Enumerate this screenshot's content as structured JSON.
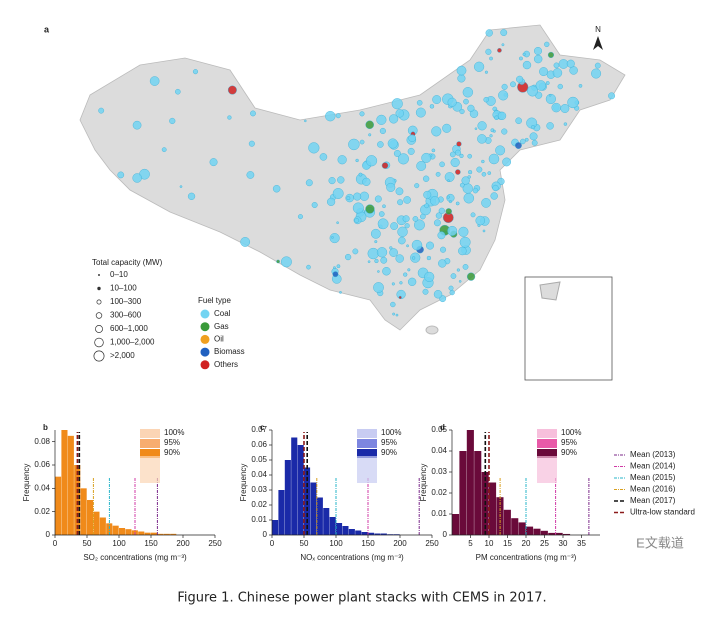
{
  "map": {
    "panel": "a",
    "north": "N",
    "capacity_legend": {
      "title": "Total capacity (MW)",
      "labels": [
        "0–10",
        "10–100",
        "100–300",
        "300–600",
        "600–1,000",
        "1,000–2,000",
        ">2,000"
      ]
    },
    "fuel_legend": {
      "title": "Fuel type",
      "items": [
        {
          "name": "Coal",
          "color": "#72d4f2"
        },
        {
          "name": "Gas",
          "color": "#3a9a3a"
        },
        {
          "name": "Oil",
          "color": "#f0a020"
        },
        {
          "name": "Biomass",
          "color": "#2060c0"
        },
        {
          "name": "Others",
          "color": "#d02020"
        }
      ]
    }
  },
  "chart_data": [
    {
      "type": "histogram",
      "panel": "b",
      "xlabel": "SO₂ concentrations (mg m⁻³)",
      "ylabel": "Frequency",
      "color": "#f08a1a",
      "bins": [
        0,
        10,
        20,
        30,
        40,
        50,
        60,
        70,
        80,
        90,
        100,
        110,
        120,
        130,
        140,
        150,
        160,
        170,
        180,
        190,
        200,
        210,
        220,
        230,
        240,
        250
      ],
      "counts": [
        0.05,
        0.09,
        0.085,
        0.06,
        0.04,
        0.03,
        0.02,
        0.015,
        0.01,
        0.008,
        0.006,
        0.005,
        0.004,
        0.003,
        0.002,
        0.002,
        0.001,
        0.001,
        0.001,
        0,
        0,
        0,
        0,
        0,
        0
      ],
      "xlim": [
        0,
        250
      ],
      "ylim": [
        0,
        0.09
      ],
      "xticks": [
        0,
        50,
        100,
        150,
        200,
        250
      ],
      "yticks": [
        0,
        0.02,
        0.04,
        0.06,
        0.08
      ],
      "reference_values": [
        160,
        125,
        85,
        60,
        38,
        35
      ],
      "percentile_labels": [
        "100%",
        "95%",
        "90%"
      ],
      "percentile_colors": [
        "#fbd5b5",
        "#f7ad70",
        "#f08a1a"
      ]
    },
    {
      "type": "histogram",
      "panel": "c",
      "xlabel": "NOₓ concentrations (mg m⁻³)",
      "ylabel": "Frequency",
      "color": "#1a2aa8",
      "bins": [
        0,
        10,
        20,
        30,
        40,
        50,
        60,
        70,
        80,
        90,
        100,
        110,
        120,
        130,
        140,
        150,
        160,
        170,
        180,
        190,
        200,
        210,
        220,
        230,
        240,
        250
      ],
      "counts": [
        0.01,
        0.03,
        0.05,
        0.065,
        0.06,
        0.045,
        0.035,
        0.025,
        0.018,
        0.012,
        0.008,
        0.006,
        0.004,
        0.003,
        0.002,
        0.0015,
        0.001,
        0.001,
        0.0005,
        0.0005,
        0,
        0,
        0,
        0,
        0
      ],
      "xlim": [
        0,
        250
      ],
      "ylim": [
        0,
        0.07
      ],
      "xticks": [
        0,
        50,
        100,
        150,
        200,
        250
      ],
      "yticks": [
        0,
        0.01,
        0.02,
        0.03,
        0.04,
        0.05,
        0.06,
        0.07
      ],
      "reference_values": [
        230,
        150,
        100,
        70,
        55,
        50
      ],
      "percentile_labels": [
        "100%",
        "95%",
        "90%"
      ],
      "percentile_colors": [
        "#c8ccf2",
        "#7d86e0",
        "#1a2aa8"
      ]
    },
    {
      "type": "histogram",
      "panel": "d",
      "xlabel": "PM concentrations (mg m⁻³)",
      "ylabel": "Frequency",
      "color": "#6a0a3a",
      "bins": [
        0,
        2,
        4,
        6,
        8,
        10,
        12,
        14,
        16,
        18,
        20,
        22,
        24,
        26,
        28,
        30,
        32,
        34,
        36,
        38,
        40
      ],
      "counts": [
        0.01,
        0.04,
        0.05,
        0.04,
        0.03,
        0.025,
        0.018,
        0.012,
        0.008,
        0.006,
        0.004,
        0.003,
        0.002,
        0.001,
        0.001,
        0.0005,
        0,
        0,
        0,
        0
      ],
      "xlim": [
        0,
        40
      ],
      "ylim": [
        0,
        0.05
      ],
      "xticks": [
        5,
        10,
        15,
        20,
        25,
        30,
        35
      ],
      "yticks": [
        0,
        0.01,
        0.02,
        0.03,
        0.04,
        0.05
      ],
      "reference_values": [
        37,
        28,
        20,
        13,
        9,
        10
      ],
      "percentile_labels": [
        "100%",
        "95%",
        "90%"
      ],
      "percentile_colors": [
        "#f7bfdc",
        "#e85aa8",
        "#6a0a3a"
      ]
    }
  ],
  "mean_legend": [
    {
      "name": "Mean (2013)",
      "color": "#7b2a8a"
    },
    {
      "name": "Mean (2014)",
      "color": "#d03aa6"
    },
    {
      "name": "Mean (2015)",
      "color": "#27b5c8"
    },
    {
      "name": "Mean (2016)",
      "color": "#d9a020"
    },
    {
      "name": "Mean (2017)",
      "color": "#111111"
    },
    {
      "name": "Ultra-low standard",
      "color": "#8b1a1a"
    }
  ],
  "caption": "Figure 1. Chinese power plant stacks with CEMS in 2017.",
  "watermark": "E文载道"
}
